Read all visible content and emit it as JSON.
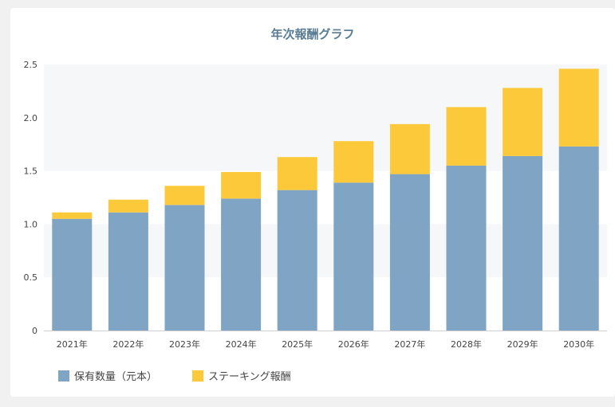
{
  "chart_data": {
    "type": "bar",
    "stacked": true,
    "title": "年次報酬グラフ",
    "categories": [
      "2021年",
      "2022年",
      "2023年",
      "2024年",
      "2025年",
      "2026年",
      "2027年",
      "2028年",
      "2029年",
      "2030年"
    ],
    "series": [
      {
        "name": "保有数量（元本）",
        "color": "#7fa4c4",
        "values": [
          1.05,
          1.11,
          1.18,
          1.24,
          1.32,
          1.39,
          1.47,
          1.55,
          1.64,
          1.73
        ]
      },
      {
        "name": "ステーキング報酬",
        "color": "#fcc93a",
        "values": [
          0.06,
          0.12,
          0.18,
          0.25,
          0.31,
          0.39,
          0.47,
          0.55,
          0.64,
          0.73
        ]
      }
    ],
    "y_ticks": [
      "0",
      "0.5",
      "1.0",
      "1.5",
      "2.0",
      "2.5"
    ],
    "ylim": [
      0,
      2.5
    ],
    "grid": true,
    "legend_position": "bottom-left"
  }
}
